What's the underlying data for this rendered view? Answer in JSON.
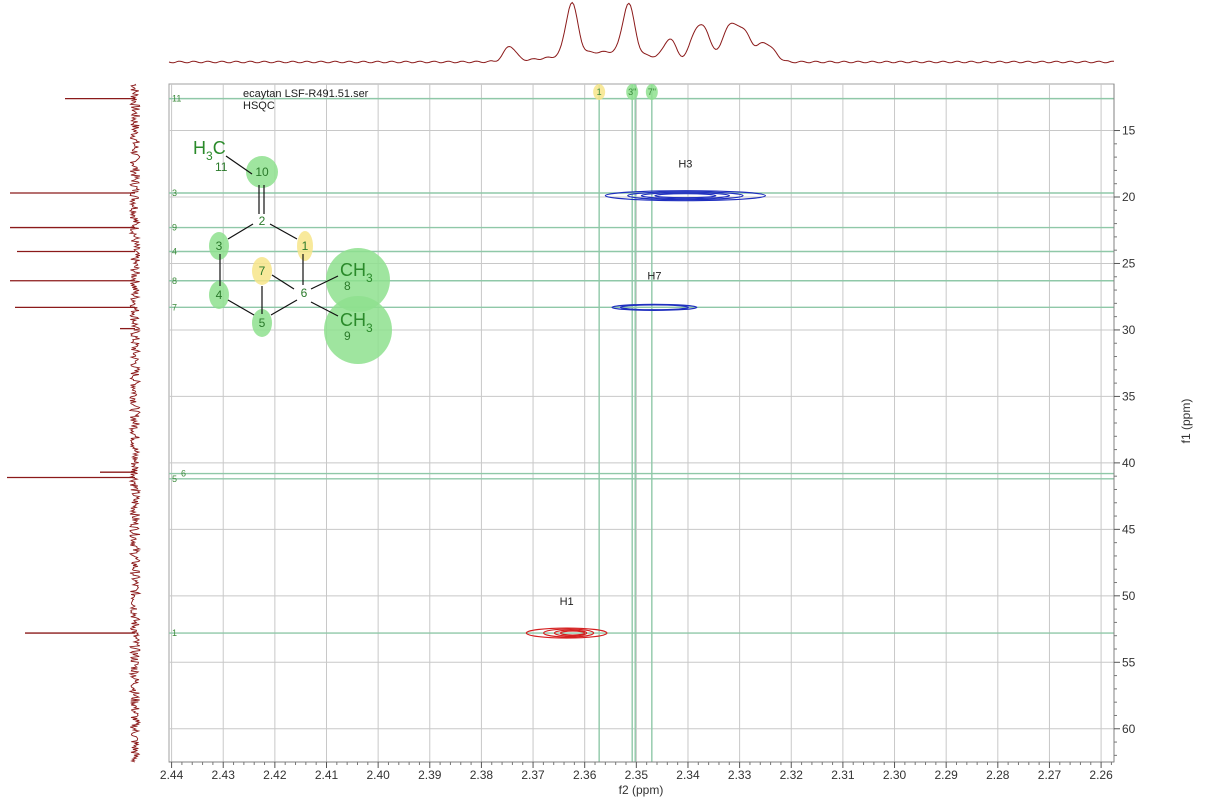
{
  "chart_data": {
    "type": "heatmap",
    "title": "ecaytan LSF-R491.51.ser",
    "subtitle": "HSQC",
    "xlabel": "f2 (ppm)",
    "ylabel": "f1 (ppm)",
    "xlim": [
      2.4405,
      2.2575
    ],
    "ylim": [
      11.5,
      62.5
    ],
    "x_ticks": [
      2.44,
      2.43,
      2.42,
      2.41,
      2.4,
      2.39,
      2.38,
      2.37,
      2.36,
      2.35,
      2.34,
      2.33,
      2.32,
      2.31,
      2.3,
      2.29,
      2.28,
      2.27,
      2.26
    ],
    "x_tick_labels": [
      "2.44",
      "2.43",
      "2.42",
      "2.41",
      "2.40",
      "2.39",
      "2.38",
      "2.37",
      "2.36",
      "2.35",
      "2.34",
      "2.33",
      "2.32",
      "2.31",
      "2.30",
      "2.29",
      "2.28",
      "2.27",
      "2.26"
    ],
    "y_ticks": [
      15,
      20,
      25,
      30,
      35,
      40,
      45,
      50,
      55,
      60
    ],
    "y_tick_labels": [
      "15",
      "20",
      "25",
      "30",
      "35",
      "40",
      "45",
      "50",
      "55",
      "60"
    ],
    "grid": true,
    "peaks": [
      {
        "label": "H3",
        "x": 2.3405,
        "y": 19.9,
        "color": "#1f2fbf"
      },
      {
        "label": "H7",
        "x": 2.3465,
        "y": 28.3,
        "color": "#1f2fbf"
      },
      {
        "label": "H1",
        "x": 2.3635,
        "y": 52.8,
        "color": "#d42020"
      }
    ],
    "f1_assignments": [
      {
        "label": "11",
        "y": 12.6
      },
      {
        "label": "3",
        "y": 19.7
      },
      {
        "label": "9",
        "y": 22.3
      },
      {
        "label": "4",
        "y": 24.1
      },
      {
        "label": "8",
        "y": 26.3
      },
      {
        "label": "7",
        "y": 28.3
      },
      {
        "label": "6",
        "y": 40.8
      },
      {
        "label": "5",
        "y": 41.2
      },
      {
        "label": "1",
        "y": 52.8
      }
    ],
    "f2_assignments": [
      {
        "label": "1",
        "x": 2.3572,
        "color": "#f7e58a"
      },
      {
        "label": "3\"",
        "x": 2.3508,
        "color": "#8ee08e"
      },
      {
        "label": "7\"",
        "x": 2.347,
        "color": "#8ee08e"
      }
    ],
    "f1_projection_peaks": [
      12.6,
      19.7,
      22.3,
      24.1,
      26.3,
      28.3,
      29.9,
      40.7,
      41.1,
      52.8
    ],
    "f2_projection_peaks": [
      2.3745,
      2.3625,
      2.3515,
      2.3435,
      2.3385,
      2.3365,
      2.3325,
      2.3305,
      2.3285,
      2.3255,
      2.3235
    ]
  },
  "structure": {
    "methyl_group": {
      "main": "H",
      "sub": "3",
      "tail": "C"
    },
    "methyl_sub_number": "11",
    "dimethyl_top": {
      "main": "CH",
      "sub": "3"
    },
    "dimethyl_bottom": {
      "main": "CH",
      "sub": "3"
    },
    "atoms": [
      {
        "label": "10",
        "highlight": "#8ee08e"
      },
      {
        "label": "2",
        "highlight": ""
      },
      {
        "label": "1",
        "highlight": "#f7e58a"
      },
      {
        "label": "3",
        "highlight": "#8ee08e"
      },
      {
        "label": "7",
        "highlight": "#f7e58a"
      },
      {
        "label": "6",
        "highlight": ""
      },
      {
        "label": "4",
        "highlight": "#8ee08e"
      },
      {
        "label": "5",
        "highlight": "#8ee08e"
      },
      {
        "label": "8",
        "highlight": "#8ee08e"
      },
      {
        "label": "9",
        "highlight": "#8ee08e"
      }
    ]
  },
  "colors": {
    "projection": "#8b1a1a",
    "grid": "#c8c8c8",
    "assignment_line": "#8fc8a8",
    "positive_contour": "#1f2fbf",
    "negative_contour": "#d42020"
  }
}
